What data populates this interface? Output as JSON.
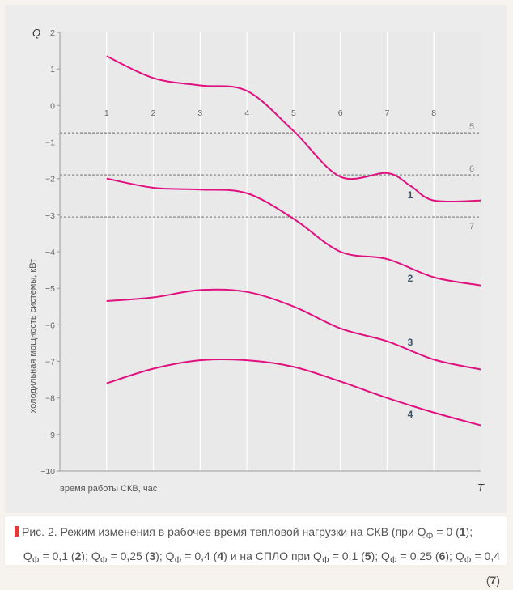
{
  "chart_data": {
    "type": "line",
    "title": "",
    "ylabel": "холодильная мощность системы, кВт",
    "ylabel_symbol": "Q",
    "xlabel": "время работы СКВ, час",
    "xlabel_symbol": "T",
    "ylim": [
      -10,
      2
    ],
    "xlim": [
      0,
      9
    ],
    "yticks": [
      "2",
      "1",
      "0",
      "−1",
      "−2",
      "−3",
      "−4",
      "−5",
      "−6",
      "−7",
      "−8",
      "−9",
      "−10"
    ],
    "ytick_values": [
      2,
      1,
      0,
      -1,
      -2,
      -3,
      -4,
      -5,
      -6,
      -7,
      -8,
      -9,
      -10
    ],
    "xticks": [
      "1",
      "2",
      "3",
      "4",
      "5",
      "6",
      "7",
      "8"
    ],
    "xtick_values": [
      1,
      2,
      3,
      4,
      5,
      6,
      7,
      8
    ],
    "grid": "vertical",
    "series": [
      {
        "name": "1",
        "x": [
          1,
          2,
          3,
          4,
          5,
          6,
          7,
          7.5,
          8,
          9
        ],
        "values": [
          1.35,
          0.75,
          0.55,
          0.4,
          -0.7,
          -1.95,
          -1.85,
          -2.2,
          -2.6,
          -2.6
        ]
      },
      {
        "name": "2",
        "x": [
          1,
          2,
          3,
          4,
          5,
          6,
          7,
          8,
          9
        ],
        "values": [
          -2.0,
          -2.25,
          -2.3,
          -2.4,
          -3.1,
          -4.0,
          -4.2,
          -4.7,
          -4.92
        ]
      },
      {
        "name": "3",
        "x": [
          1,
          2,
          3,
          4,
          5,
          6,
          7,
          8,
          9
        ],
        "values": [
          -5.35,
          -5.25,
          -5.05,
          -5.1,
          -5.5,
          -6.1,
          -6.45,
          -6.95,
          -7.22
        ]
      },
      {
        "name": "4",
        "x": [
          1,
          2,
          3,
          4,
          5,
          6,
          7,
          8,
          9
        ],
        "values": [
          -7.6,
          -7.2,
          -6.97,
          -6.97,
          -7.15,
          -7.55,
          -8.0,
          -8.4,
          -8.75
        ]
      }
    ],
    "reference_lines": [
      {
        "name": "5",
        "value": -0.75
      },
      {
        "name": "6",
        "value": -1.9
      },
      {
        "name": "7",
        "value": -3.05
      }
    ],
    "series_color": "#e0117f",
    "reference_color": "#8a8a8a"
  },
  "caption": {
    "prefix": "Рис. 2. Режим изменения в рабочее время тепловой нагрузки на СКВ (при Q",
    "sub": "Ф",
    "eq": " = 0 (",
    "n1": "1",
    "sep": ");",
    "line2_a": "Q",
    "line2_a_sub": "Ф",
    "line2_a_val": " = 0,1 (",
    "n2": "2",
    "line2_b": "Q",
    "line2_b_sub": "Ф",
    "line2_b_val": " = 0,25 (",
    "n3": "3",
    "line2_c": "Q",
    "line2_c_sub": "Ф",
    "line2_c_val": " = 0,4 (",
    "n4": "4",
    "line2_mid": ") и на СПЛО при Q",
    "line2_mid_sub": "Ф",
    "line2_d_val": " = 0,1 (",
    "n5": "5",
    "line2_e": "Q",
    "line2_e_sub": "Ф",
    "line2_e_val": " = 0,25 (",
    "n6": "6",
    "line2_f": "Q",
    "line2_f_sub": "Ф",
    "line2_f_val": " = 0,4 (",
    "n7": "7",
    "close": ")",
    "close_semi": ");",
    "accent_color": "#e0393e"
  }
}
